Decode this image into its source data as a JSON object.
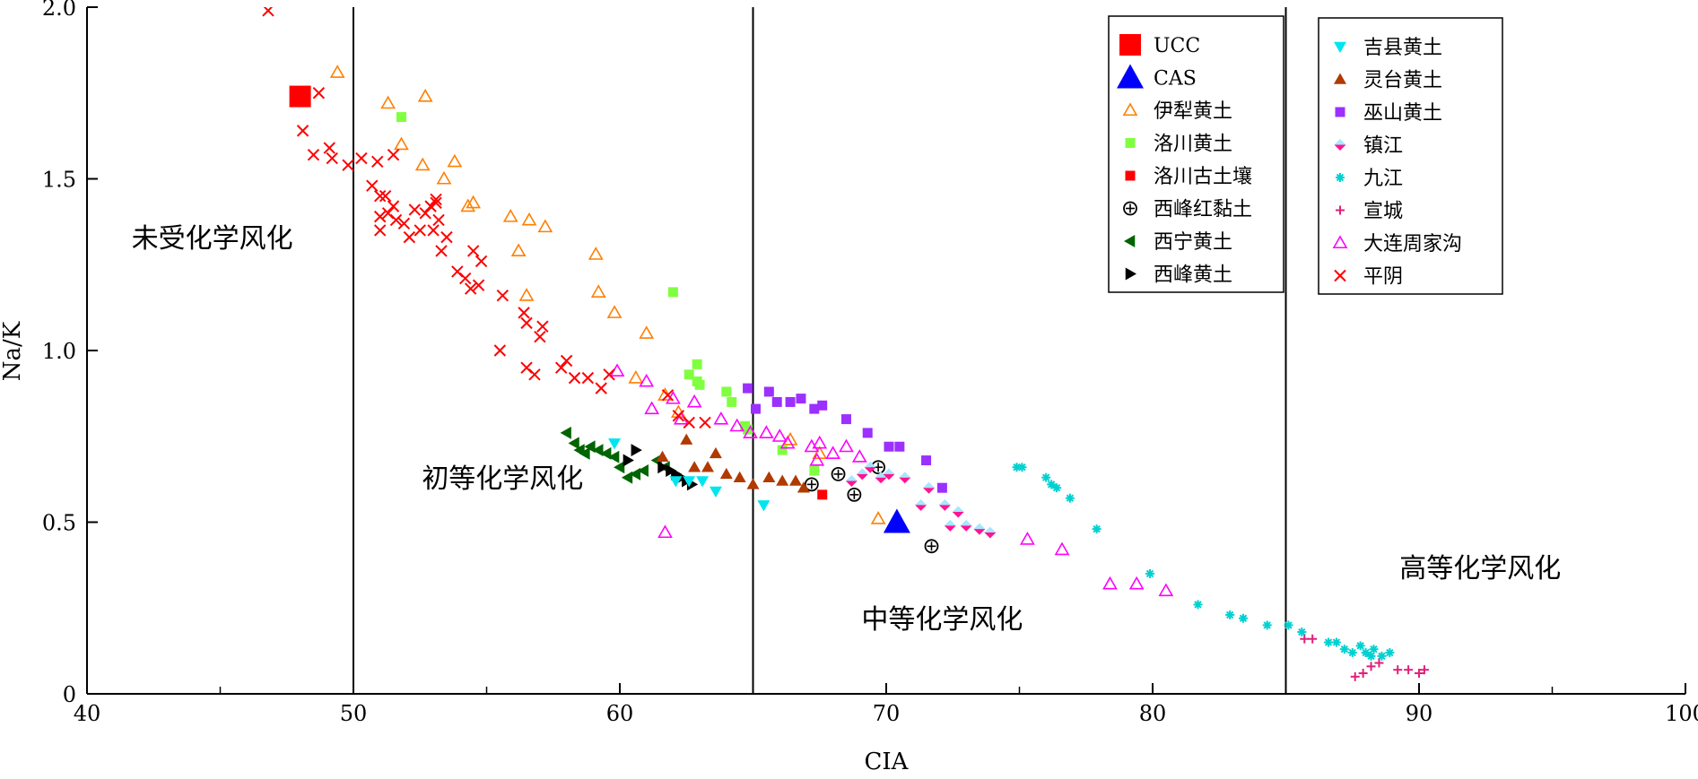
{
  "chart_data": {
    "type": "scatter",
    "xlabel": "CIA",
    "ylabel": "Na/K",
    "xlim": [
      40,
      100
    ],
    "ylim": [
      0,
      2.0
    ],
    "x_ticks": [
      40,
      50,
      60,
      70,
      80,
      90,
      100
    ],
    "x_minor_ticks": [
      45,
      55,
      65,
      75,
      85,
      95
    ],
    "y_ticks": [
      0,
      0.5,
      1.0,
      1.5,
      2.0
    ],
    "y_tick_labels": [
      "0",
      "0.5",
      "1.0",
      "1.5",
      "2.0"
    ],
    "divider_lines_cia": [
      50,
      65,
      85
    ],
    "regions": [
      {
        "label": "未受化学风化",
        "x": 44.7,
        "y": 1.3
      },
      {
        "label": "初等化学风化",
        "x": 55.6,
        "y": 0.6
      },
      {
        "label": "中等化学风化",
        "x": 72.1,
        "y": 0.19
      },
      {
        "label": "高等化学风化",
        "x": 92.3,
        "y": 0.34
      }
    ],
    "legend_groups": [
      [
        "UCC",
        "CAS",
        "伊犁黄土",
        "洛川黄土",
        "洛川古土壤",
        "西峰红黏土",
        "西宁黄土",
        "西峰黄土"
      ],
      [
        "吉县黄土",
        "灵台黄土",
        "巫山黄土",
        "镇江",
        "九江",
        "宣城",
        "大连周家沟",
        "平阴"
      ]
    ],
    "series": [
      {
        "name": "UCC",
        "marker": "square-large",
        "color": "#ff0000",
        "points": [
          [
            48.0,
            1.74
          ]
        ]
      },
      {
        "name": "CAS",
        "marker": "triangle-large",
        "color": "#0000ff",
        "points": [
          [
            70.4,
            0.5
          ]
        ]
      },
      {
        "name": "伊犁黄土",
        "marker": "triangle-open",
        "color": "#ff7f00",
        "points": [
          [
            49.4,
            1.81
          ],
          [
            51.3,
            1.72
          ],
          [
            52.7,
            1.74
          ],
          [
            51.8,
            1.6
          ],
          [
            52.6,
            1.54
          ],
          [
            53.4,
            1.5
          ],
          [
            53.8,
            1.55
          ],
          [
            54.3,
            1.42
          ],
          [
            54.5,
            1.43
          ],
          [
            55.9,
            1.39
          ],
          [
            56.6,
            1.38
          ],
          [
            57.2,
            1.36
          ],
          [
            56.2,
            1.29
          ],
          [
            59.1,
            1.28
          ],
          [
            56.5,
            1.16
          ],
          [
            59.2,
            1.17
          ],
          [
            59.8,
            1.11
          ],
          [
            61.0,
            1.05
          ],
          [
            60.6,
            0.92
          ],
          [
            61.7,
            0.87
          ],
          [
            62.2,
            0.82
          ],
          [
            66.4,
            0.74
          ],
          [
            67.5,
            0.7
          ],
          [
            69.7,
            0.51
          ]
        ]
      },
      {
        "name": "洛川黄土",
        "marker": "square",
        "color": "#80ff40",
        "points": [
          [
            51.8,
            1.68
          ],
          [
            62.0,
            1.17
          ],
          [
            62.6,
            0.93
          ],
          [
            62.9,
            0.96
          ],
          [
            63.0,
            0.9
          ],
          [
            62.9,
            0.91
          ],
          [
            64.0,
            0.88
          ],
          [
            64.2,
            0.85
          ],
          [
            64.7,
            0.78
          ],
          [
            64.8,
            0.77
          ],
          [
            66.1,
            0.71
          ],
          [
            67.3,
            0.65
          ]
        ]
      },
      {
        "name": "洛川古土壤",
        "marker": "square",
        "color": "#ff0000",
        "points": [
          [
            67.6,
            0.58
          ]
        ]
      },
      {
        "name": "西峰红黏土",
        "marker": "circle-cross",
        "color": "#000000",
        "points": [
          [
            67.2,
            0.61
          ],
          [
            68.2,
            0.64
          ],
          [
            68.8,
            0.58
          ],
          [
            69.7,
            0.66
          ],
          [
            71.7,
            0.43
          ]
        ]
      },
      {
        "name": "西宁黄土",
        "marker": "triangle-left",
        "color": "#006400",
        "points": [
          [
            58.0,
            0.76
          ],
          [
            58.3,
            0.73
          ],
          [
            58.5,
            0.71
          ],
          [
            58.7,
            0.7
          ],
          [
            58.9,
            0.72
          ],
          [
            59.2,
            0.71
          ],
          [
            59.5,
            0.7
          ],
          [
            59.8,
            0.69
          ],
          [
            60.0,
            0.66
          ],
          [
            60.3,
            0.63
          ],
          [
            60.6,
            0.64
          ],
          [
            60.9,
            0.65
          ],
          [
            61.4,
            0.68
          ],
          [
            61.7,
            0.66
          ]
        ]
      },
      {
        "name": "西峰黄土",
        "marker": "triangle-right",
        "color": "#000000",
        "points": [
          [
            60.3,
            0.68
          ],
          [
            60.6,
            0.71
          ],
          [
            61.6,
            0.66
          ],
          [
            61.9,
            0.65
          ],
          [
            62.1,
            0.64
          ],
          [
            62.3,
            0.63
          ],
          [
            62.5,
            0.62
          ],
          [
            62.7,
            0.61
          ]
        ]
      },
      {
        "name": "吉县黄土",
        "marker": "triangle-down",
        "color": "#00e5ee",
        "points": [
          [
            59.8,
            0.73
          ],
          [
            62.1,
            0.62
          ],
          [
            62.6,
            0.62
          ],
          [
            63.1,
            0.62
          ],
          [
            63.6,
            0.59
          ],
          [
            65.4,
            0.55
          ]
        ]
      },
      {
        "name": "灵台黄土",
        "marker": "triangle",
        "color": "#b03a00",
        "points": [
          [
            61.6,
            0.69
          ],
          [
            62.5,
            0.74
          ],
          [
            62.8,
            0.66
          ],
          [
            63.3,
            0.66
          ],
          [
            63.6,
            0.7
          ],
          [
            64.0,
            0.64
          ],
          [
            64.5,
            0.63
          ],
          [
            65.0,
            0.61
          ],
          [
            65.6,
            0.63
          ],
          [
            66.1,
            0.62
          ],
          [
            66.6,
            0.62
          ],
          [
            66.9,
            0.6
          ]
        ]
      },
      {
        "name": "巫山黄土",
        "marker": "square",
        "color": "#9b30ff",
        "points": [
          [
            64.8,
            0.89
          ],
          [
            65.1,
            0.83
          ],
          [
            65.6,
            0.88
          ],
          [
            65.9,
            0.85
          ],
          [
            66.4,
            0.85
          ],
          [
            66.8,
            0.86
          ],
          [
            67.3,
            0.83
          ],
          [
            67.6,
            0.84
          ],
          [
            68.5,
            0.8
          ],
          [
            69.3,
            0.76
          ],
          [
            70.1,
            0.72
          ],
          [
            70.5,
            0.72
          ],
          [
            71.5,
            0.68
          ],
          [
            72.1,
            0.6
          ]
        ]
      },
      {
        "name": "镇江",
        "marker": "diamond-split",
        "color": "#ff1493",
        "points": [
          [
            68.7,
            0.62
          ],
          [
            69.1,
            0.64
          ],
          [
            69.4,
            0.66
          ],
          [
            69.8,
            0.63
          ],
          [
            70.1,
            0.64
          ],
          [
            70.7,
            0.63
          ],
          [
            71.3,
            0.55
          ],
          [
            71.6,
            0.6
          ],
          [
            72.2,
            0.55
          ],
          [
            72.7,
            0.53
          ],
          [
            72.4,
            0.49
          ],
          [
            73.0,
            0.49
          ],
          [
            73.5,
            0.48
          ],
          [
            73.9,
            0.47
          ]
        ]
      },
      {
        "name": "九江",
        "marker": "asterisk",
        "color": "#00d0d0",
        "points": [
          [
            74.9,
            0.66
          ],
          [
            75.1,
            0.66
          ],
          [
            76.0,
            0.63
          ],
          [
            76.2,
            0.61
          ],
          [
            76.4,
            0.6
          ],
          [
            76.9,
            0.57
          ],
          [
            77.9,
            0.48
          ],
          [
            79.9,
            0.35
          ],
          [
            81.7,
            0.26
          ],
          [
            82.9,
            0.23
          ],
          [
            83.4,
            0.22
          ],
          [
            84.3,
            0.2
          ],
          [
            85.1,
            0.2
          ],
          [
            85.6,
            0.18
          ],
          [
            86.6,
            0.15
          ],
          [
            86.9,
            0.15
          ],
          [
            87.2,
            0.13
          ],
          [
            87.5,
            0.12
          ],
          [
            87.8,
            0.14
          ],
          [
            88.0,
            0.12
          ],
          [
            88.2,
            0.11
          ],
          [
            88.3,
            0.13
          ],
          [
            88.6,
            0.11
          ],
          [
            88.9,
            0.12
          ]
        ]
      },
      {
        "name": "宣城",
        "marker": "plus",
        "color": "#e0207a",
        "points": [
          [
            85.7,
            0.16
          ],
          [
            86.0,
            0.16
          ],
          [
            87.6,
            0.05
          ],
          [
            87.9,
            0.06
          ],
          [
            88.2,
            0.08
          ],
          [
            88.5,
            0.09
          ],
          [
            89.2,
            0.07
          ],
          [
            89.6,
            0.07
          ],
          [
            90.0,
            0.06
          ],
          [
            90.2,
            0.07
          ]
        ]
      },
      {
        "name": "大连周家沟",
        "marker": "triangle-open",
        "color": "#ff00ff",
        "points": [
          [
            59.9,
            0.94
          ],
          [
            61.0,
            0.91
          ],
          [
            61.2,
            0.83
          ],
          [
            61.7,
            0.47
          ],
          [
            62.0,
            0.86
          ],
          [
            62.3,
            0.8
          ],
          [
            62.8,
            0.85
          ],
          [
            63.8,
            0.8
          ],
          [
            64.4,
            0.78
          ],
          [
            64.9,
            0.76
          ],
          [
            65.5,
            0.76
          ],
          [
            66.0,
            0.75
          ],
          [
            66.3,
            0.73
          ],
          [
            67.2,
            0.72
          ],
          [
            67.5,
            0.73
          ],
          [
            67.4,
            0.68
          ],
          [
            68.0,
            0.7
          ],
          [
            68.5,
            0.72
          ],
          [
            69.0,
            0.69
          ],
          [
            75.3,
            0.45
          ],
          [
            76.6,
            0.42
          ],
          [
            78.4,
            0.32
          ],
          [
            79.4,
            0.32
          ],
          [
            80.5,
            0.3
          ]
        ]
      },
      {
        "name": "平阴",
        "marker": "x",
        "color": "#ff0000",
        "points": [
          [
            46.8,
            1.99
          ],
          [
            48.7,
            1.75
          ],
          [
            48.1,
            1.64
          ],
          [
            48.5,
            1.57
          ],
          [
            49.1,
            1.59
          ],
          [
            49.2,
            1.56
          ],
          [
            49.8,
            1.54
          ],
          [
            50.3,
            1.56
          ],
          [
            50.7,
            1.48
          ],
          [
            50.9,
            1.55
          ],
          [
            51.0,
            1.45
          ],
          [
            51.2,
            1.45
          ],
          [
            51.5,
            1.42
          ],
          [
            51.5,
            1.57
          ],
          [
            51.0,
            1.39
          ],
          [
            51.0,
            1.35
          ],
          [
            51.3,
            1.4
          ],
          [
            51.6,
            1.38
          ],
          [
            51.9,
            1.37
          ],
          [
            52.1,
            1.33
          ],
          [
            52.3,
            1.41
          ],
          [
            52.5,
            1.35
          ],
          [
            52.7,
            1.4
          ],
          [
            52.9,
            1.42
          ],
          [
            53.0,
            1.35
          ],
          [
            53.1,
            1.43
          ],
          [
            53.2,
            1.38
          ],
          [
            53.3,
            1.29
          ],
          [
            53.5,
            1.33
          ],
          [
            53.1,
            1.44
          ],
          [
            53.9,
            1.23
          ],
          [
            54.2,
            1.21
          ],
          [
            54.4,
            1.18
          ],
          [
            54.5,
            1.29
          ],
          [
            54.8,
            1.26
          ],
          [
            54.7,
            1.19
          ],
          [
            55.6,
            1.16
          ],
          [
            56.4,
            1.11
          ],
          [
            56.5,
            1.08
          ],
          [
            57.0,
            1.04
          ],
          [
            57.1,
            1.07
          ],
          [
            55.5,
            1.0
          ],
          [
            56.5,
            0.95
          ],
          [
            56.8,
            0.93
          ],
          [
            57.8,
            0.95
          ],
          [
            58.0,
            0.97
          ],
          [
            58.3,
            0.92
          ],
          [
            58.8,
            0.92
          ],
          [
            59.3,
            0.89
          ],
          [
            59.6,
            0.93
          ],
          [
            61.8,
            0.87
          ],
          [
            62.2,
            0.81
          ],
          [
            62.6,
            0.79
          ],
          [
            63.2,
            0.79
          ]
        ]
      }
    ]
  }
}
